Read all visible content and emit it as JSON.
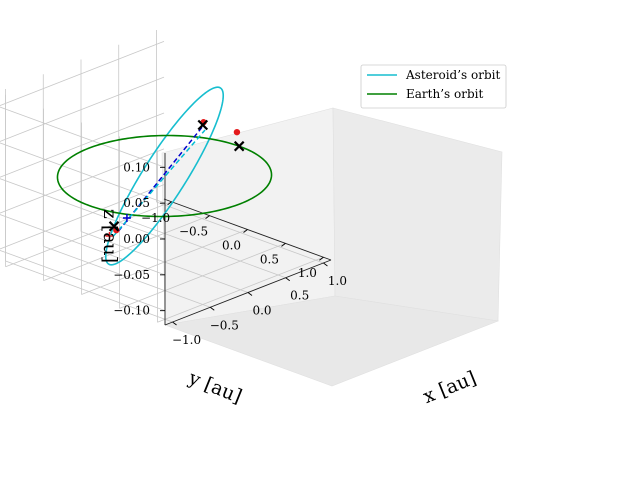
{
  "chart_data": {
    "type": "line",
    "projection": "3d",
    "title": "",
    "xlabel": "x [au]",
    "ylabel": "y [au]",
    "zlabel": "z [au]",
    "xlim": [
      -1.1,
      1.1
    ],
    "ylim": [
      -1.1,
      1.1
    ],
    "zlim": [
      -0.12,
      0.12
    ],
    "x_ticks": [
      -1.0,
      -0.5,
      0.0,
      0.5,
      1.0
    ],
    "y_ticks": [
      -1.0,
      -0.5,
      0.0,
      0.5,
      1.0
    ],
    "z_ticks": [
      -0.1,
      -0.05,
      0.0,
      0.05,
      0.1
    ],
    "x_tick_labels": [
      "−1.0",
      "−0.5",
      "0.0",
      "0.5",
      "1.0"
    ],
    "y_tick_labels": [
      "−1.0",
      "−0.5",
      "0.0",
      "0.5",
      "1.0"
    ],
    "z_tick_labels": [
      "−0.10",
      "−0.05",
      "0.00",
      "0.05",
      "0.10"
    ],
    "grid": true,
    "legend_position": "upper-right",
    "series": [
      {
        "name": "Asteroid’s orbit",
        "color": "#17becf",
        "orbit": {
          "semi_major_axis": 1.0,
          "inclination_max_z": 0.11,
          "center": [
            0,
            0,
            0
          ]
        }
      },
      {
        "name": "Earth’s orbit",
        "color": "#008000",
        "orbit": {
          "radius": 1.0,
          "z": 0.0,
          "center": [
            0,
            0,
            0
          ]
        }
      }
    ],
    "markers": {
      "cross_points": [
        {
          "x": -0.89,
          "y": 0.22,
          "z": -0.025,
          "color": "#000000"
        },
        {
          "x": 0.95,
          "y": -0.44,
          "z": 0.015,
          "color": "#000000"
        },
        {
          "x": 1.0,
          "y": -0.01,
          "z": 0.0,
          "color": "#000000"
        }
      ],
      "red_points": [
        {
          "x": -0.88,
          "y": 0.24,
          "z": -0.03
        },
        {
          "x": 0.94,
          "y": -0.42,
          "z": 0.02
        },
        {
          "x": 0.98,
          "y": -0.02,
          "z": 0.02
        }
      ],
      "blue_plus": {
        "x": -0.85,
        "y": 0.35,
        "z": -0.01
      },
      "red_plus": {
        "x": -0.9,
        "y": 0.17,
        "z": -0.04
      }
    },
    "connector_lines": [
      {
        "from": [
          -0.88,
          0.27,
          -0.03
        ],
        "to": [
          0.95,
          -0.4,
          0.02
        ],
        "color": "#0000cd",
        "style": "dashed"
      },
      {
        "from": [
          -0.88,
          0.2,
          -0.04
        ],
        "to": [
          0.94,
          -0.4,
          0.01
        ],
        "color": "#00bcd4",
        "style": "dashed"
      }
    ]
  }
}
